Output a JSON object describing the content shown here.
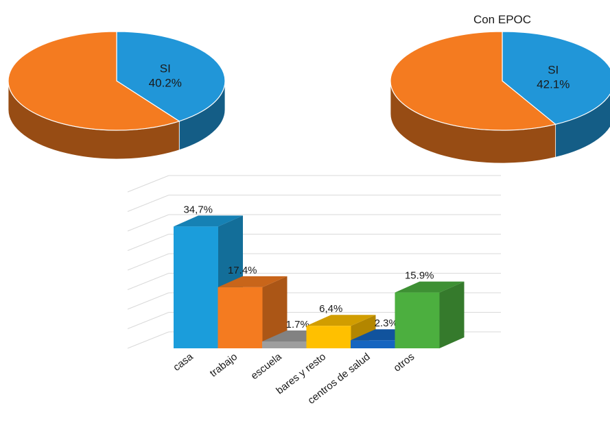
{
  "chart_data": [
    {
      "type": "pie",
      "title": "",
      "slices": [
        {
          "label": "SI",
          "value": 40.2,
          "value_label": "40.2%",
          "color": "#2196D8"
        },
        {
          "label": "",
          "value": 59.8,
          "value_label": "",
          "color": "#F47B20"
        }
      ]
    },
    {
      "type": "pie",
      "title": "Con EPOC",
      "slices": [
        {
          "label": "SI",
          "value": 42.1,
          "value_label": "42.1%",
          "color": "#2196D8"
        },
        {
          "label": "",
          "value": 57.9,
          "value_label": "",
          "color": "#F47B20"
        }
      ]
    },
    {
      "type": "bar",
      "title": "",
      "categories": [
        "casa",
        "trabajo",
        "escuela",
        "bares y resto",
        "centros de salud",
        "otros"
      ],
      "values": [
        34.7,
        17.4,
        1.7,
        6.4,
        2.3,
        15.9
      ],
      "value_labels": [
        "34,7%",
        "17.4%",
        "1.7%",
        "6,4%",
        "2.3%",
        "15.9%"
      ],
      "colors": [
        "#1B9DDB",
        "#F47B20",
        "#9E9E9E",
        "#FFC000",
        "#1565C0",
        "#4CAF3F"
      ],
      "ylim": [
        0,
        40
      ],
      "grid": true
    }
  ]
}
